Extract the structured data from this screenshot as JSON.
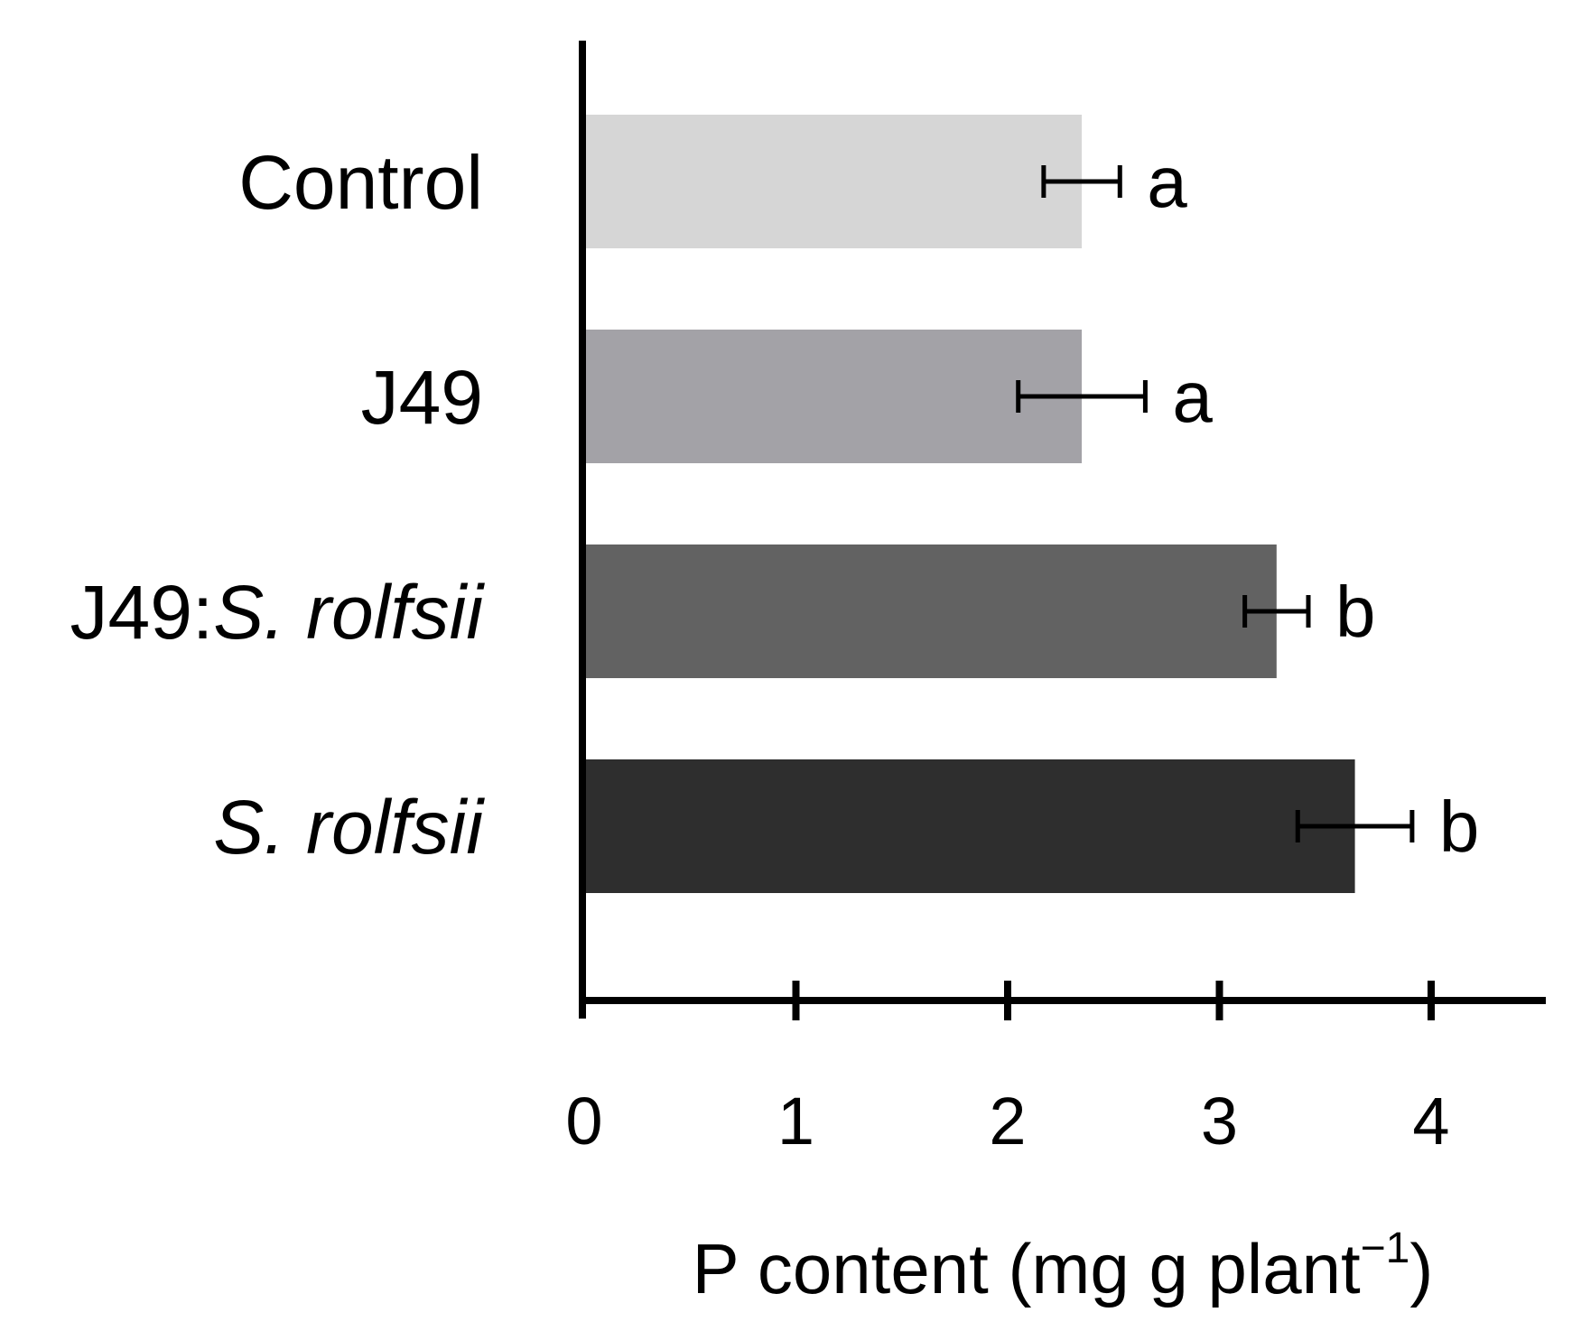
{
  "chart_data": {
    "type": "bar",
    "orientation": "horizontal",
    "categories": [
      {
        "plain": "Control",
        "italic": ""
      },
      {
        "plain": "J49",
        "italic": ""
      },
      {
        "plain": "J49:",
        "italic": "S. rolfsii"
      },
      {
        "plain": "",
        "italic": "S. rolfsii"
      }
    ],
    "values": [
      2.35,
      2.35,
      3.27,
      3.64
    ],
    "errors": [
      0.18,
      0.3,
      0.15,
      0.27
    ],
    "significance_letters": [
      "a",
      "a",
      "b",
      "b"
    ],
    "bar_colors": [
      "#d6d6d6",
      "#a3a2a7",
      "#626262",
      "#2e2e2e"
    ],
    "xlim": [
      0,
      4.5
    ],
    "xticks": [
      0,
      1,
      2,
      3,
      4
    ],
    "xlabel": {
      "main": "P content (mg g plant",
      "superscript": "−1",
      "close": ")"
    },
    "ylabel": "",
    "title": "",
    "grid": false,
    "legend": "none"
  }
}
